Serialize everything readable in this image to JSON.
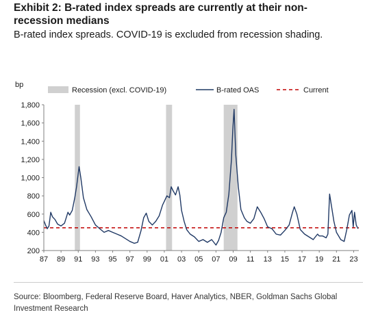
{
  "header": {
    "title": "Exhibit 2: B-rated index spreads are currently at their non-recession medians",
    "subtitle": "B-rated index spreads. COVID-19 is excluded from recession shading."
  },
  "footer": {
    "source": "Source: Bloomberg, Federal Reserve Board, Haver Analytics, NBER, Goldman Sachs Global Investment Research"
  },
  "chart_data": {
    "type": "line",
    "ylabel": "bp",
    "xlim": [
      1987.0,
      2023.6
    ],
    "ylim": [
      200,
      1800
    ],
    "y_ticks": [
      200,
      400,
      600,
      800,
      1000,
      1200,
      1400,
      1600,
      1800
    ],
    "y_tick_labels": [
      "200",
      "400",
      "600",
      "800",
      "1,000",
      "1,200",
      "1,400",
      "1,600",
      "1,800"
    ],
    "x_ticks": [
      1987,
      1989,
      1991,
      1993,
      1995,
      1997,
      1999,
      2001,
      2003,
      2005,
      2007,
      2009,
      2011,
      2013,
      2015,
      2017,
      2019,
      2021,
      2023
    ],
    "x_tick_labels": [
      "87",
      "89",
      "91",
      "93",
      "95",
      "97",
      "99",
      "01",
      "03",
      "05",
      "07",
      "09",
      "11",
      "13",
      "15",
      "17",
      "19",
      "21",
      "23"
    ],
    "legend": {
      "placement": "top",
      "items": [
        {
          "label": "Recession (excl. COVID-19)",
          "kind": "band"
        },
        {
          "label": "B-rated OAS",
          "kind": "line"
        },
        {
          "label": "Current",
          "kind": "dashed"
        }
      ]
    },
    "colors": {
      "series": "#1f3864",
      "current": "#c00000",
      "recession": "#d0d0d0",
      "axis": "#7f7f7f"
    },
    "recessions": [
      [
        1990.6,
        1991.2
      ],
      [
        2001.2,
        2001.9
      ],
      [
        2007.9,
        2009.5
      ]
    ],
    "current_value": 450,
    "series": [
      {
        "name": "B-rated OAS",
        "x": [
          1987.0,
          1987.2,
          1987.4,
          1987.6,
          1987.8,
          1988.0,
          1988.3,
          1988.6,
          1989.0,
          1989.4,
          1989.8,
          1990.0,
          1990.3,
          1990.6,
          1990.8,
          1991.0,
          1991.1,
          1991.3,
          1991.6,
          1992.0,
          1992.5,
          1993.0,
          1993.5,
          1994.0,
          1994.5,
          1995.0,
          1995.5,
          1996.0,
          1996.5,
          1997.0,
          1997.5,
          1997.9,
          1998.3,
          1998.6,
          1998.9,
          1999.2,
          1999.6,
          2000.0,
          2000.4,
          2000.8,
          2001.0,
          2001.3,
          2001.6,
          2001.8,
          2002.0,
          2002.3,
          2002.6,
          2002.8,
          2003.0,
          2003.3,
          2003.6,
          2004.0,
          2004.5,
          2005.0,
          2005.5,
          2006.0,
          2006.5,
          2007.0,
          2007.3,
          2007.6,
          2007.9,
          2008.2,
          2008.5,
          2008.8,
          2008.95,
          2009.1,
          2009.3,
          2009.6,
          2009.9,
          2010.3,
          2010.6,
          2011.0,
          2011.4,
          2011.8,
          2012.2,
          2012.6,
          2013.0,
          2013.5,
          2014.0,
          2014.5,
          2015.0,
          2015.5,
          2015.9,
          2016.1,
          2016.4,
          2016.8,
          2017.3,
          2017.8,
          2018.3,
          2018.8,
          2019.0,
          2019.4,
          2019.8,
          2020.0,
          2020.2,
          2020.4,
          2020.7,
          2021.0,
          2021.5,
          2021.9,
          2022.2,
          2022.5,
          2022.8,
          2022.95,
          2023.1,
          2023.3,
          2023.5
        ],
        "values": [
          530,
          480,
          440,
          470,
          620,
          570,
          540,
          490,
          470,
          500,
          620,
          590,
          640,
          780,
          900,
          1050,
          1120,
          1000,
          780,
          650,
          570,
          480,
          440,
          400,
          420,
          400,
          380,
          360,
          330,
          300,
          280,
          290,
          420,
          560,
          610,
          520,
          480,
          520,
          580,
          700,
          740,
          800,
          780,
          900,
          860,
          810,
          900,
          810,
          640,
          520,
          430,
          380,
          350,
          300,
          320,
          290,
          320,
          260,
          310,
          400,
          560,
          620,
          820,
          1200,
          1520,
          1750,
          1250,
          900,
          650,
          560,
          520,
          500,
          550,
          680,
          620,
          550,
          460,
          440,
          380,
          370,
          420,
          480,
          620,
          680,
          600,
          430,
          380,
          350,
          320,
          380,
          360,
          360,
          340,
          380,
          820,
          700,
          520,
          400,
          320,
          300,
          430,
          590,
          640,
          460,
          620,
          480,
          440
        ]
      }
    ]
  }
}
